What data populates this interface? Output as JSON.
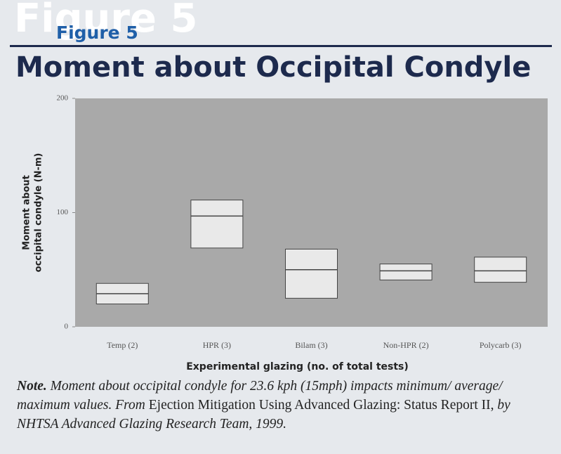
{
  "header": {
    "label": "Figure 5"
  },
  "chart_data": {
    "type": "range",
    "title": "Moment about Occipital Condyle",
    "ylabel": [
      "Moment about",
      "occipital condyle (N-m)"
    ],
    "xlabel": "Experimental glazing (no. of total tests)",
    "categories": [
      "Temp (2)",
      "HPR (3)",
      "Bilam (3)",
      "Non-HPR (2)",
      "Polycarb (3)"
    ],
    "min": [
      20,
      69,
      25,
      41,
      39
    ],
    "avg": [
      29,
      97,
      50,
      49,
      49
    ],
    "max": [
      38,
      111,
      68,
      55,
      61
    ],
    "color": "#e9e9e9",
    "plot_color": "#a9a9a9",
    "ylim": [
      0,
      200
    ],
    "yticks": [
      0,
      100,
      200
    ]
  },
  "note": [
    {
      "text": "Note.",
      "style": "bold-italic"
    },
    {
      "text": " Moment about occipital condyle for 23.6 kph (15mph) impacts minimum/ average/ maximum values. From ",
      "style": "italic"
    },
    {
      "text": "Ejection Mitigation Using Advanced Glazing: Status Report II,",
      "style": "normal"
    },
    {
      "text": " by NHTSA Advanced Glazing Research Team, 1999.",
      "style": "italic"
    }
  ]
}
